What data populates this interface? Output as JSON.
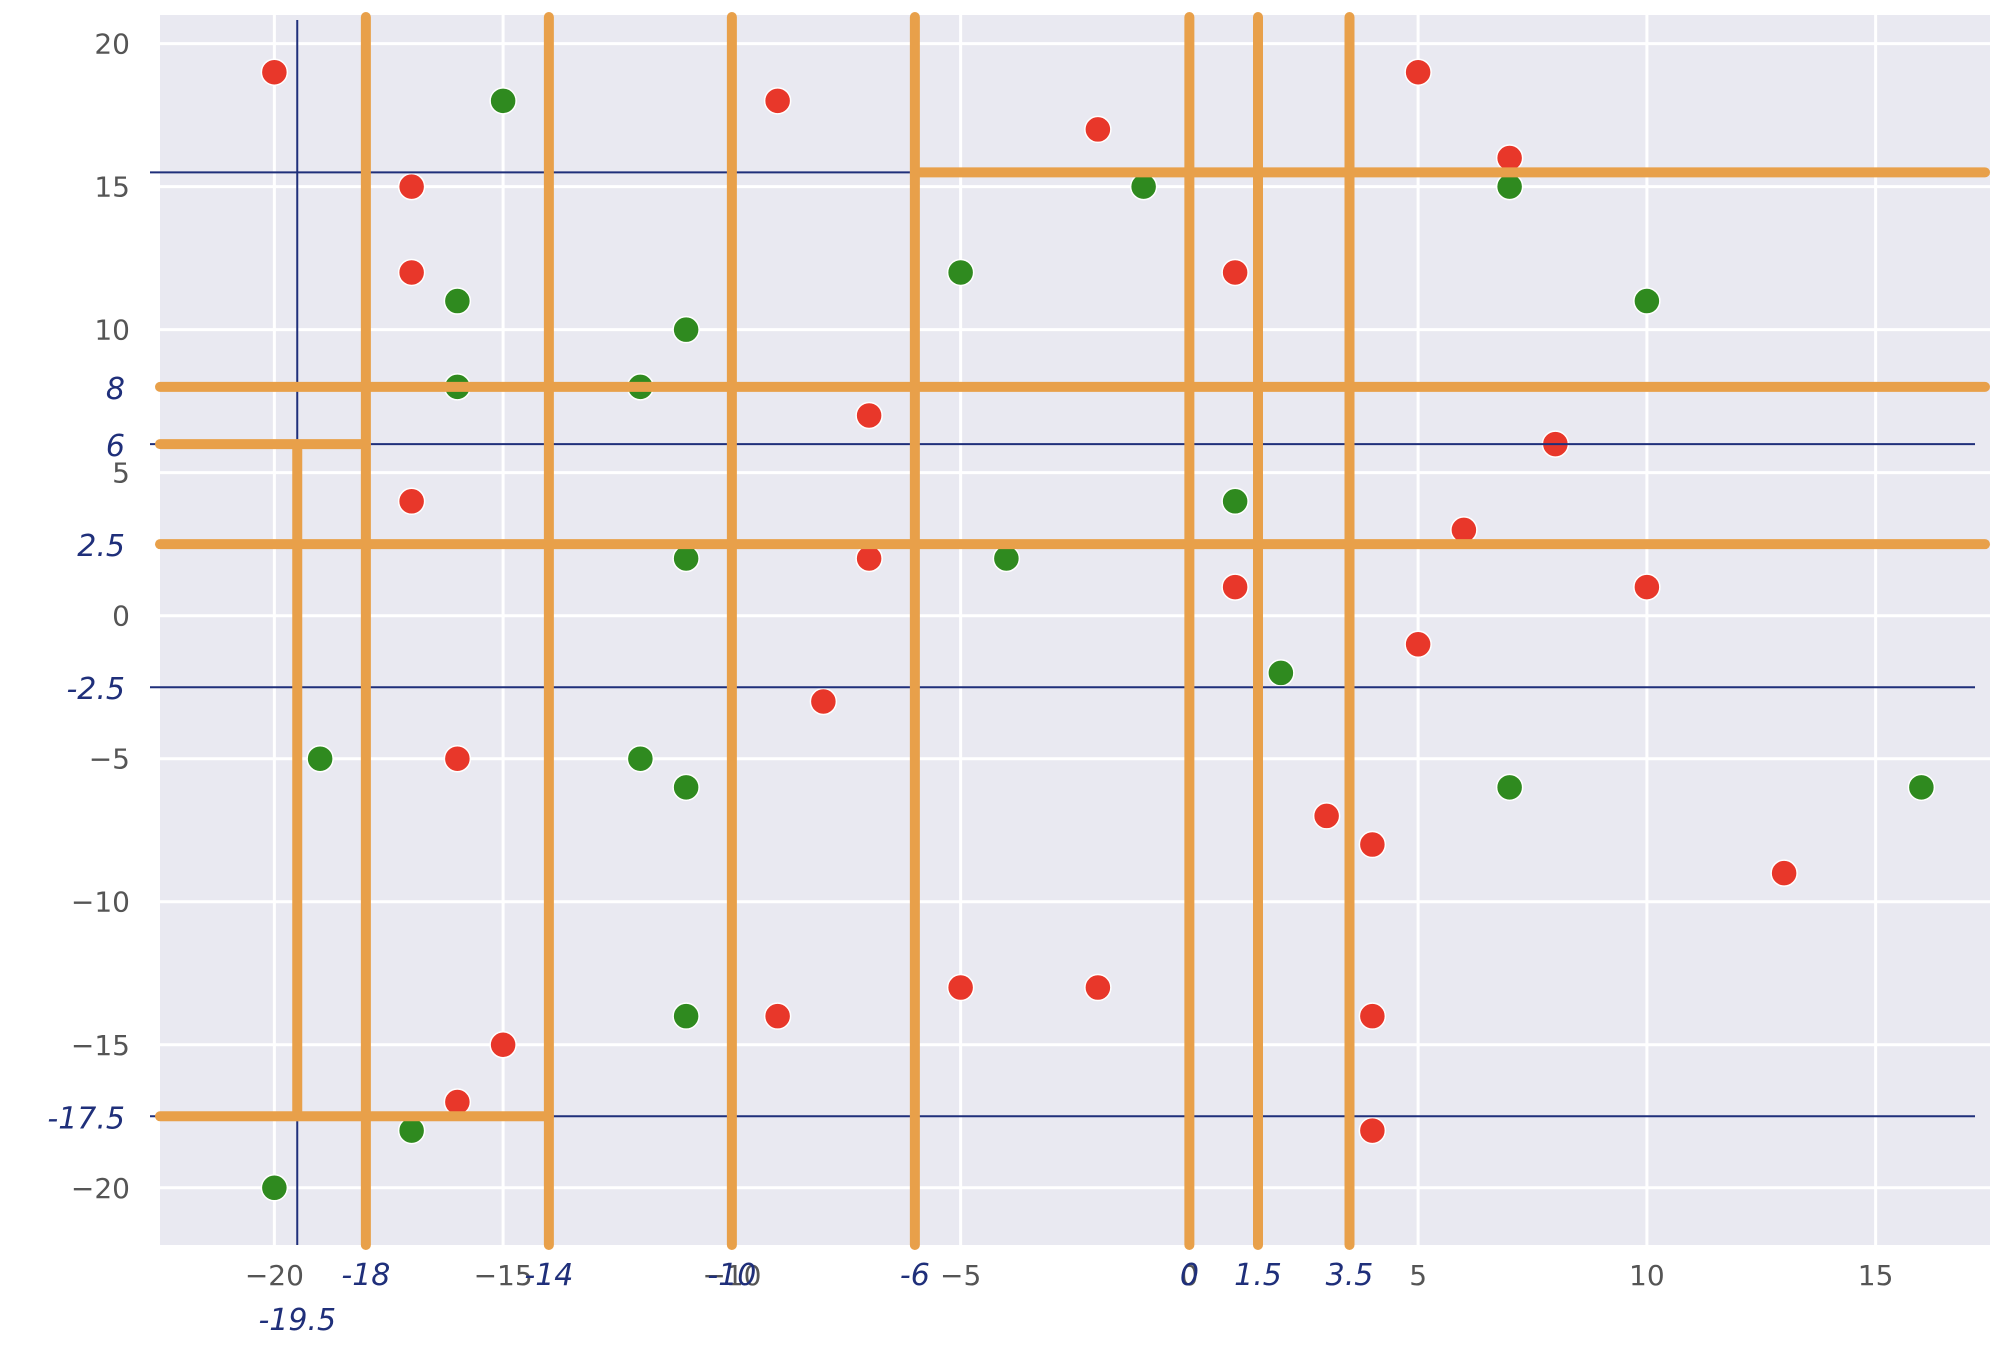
{
  "chart_data": {
    "type": "scatter",
    "title": "",
    "xlabel": "",
    "ylabel": "",
    "xlim": [
      -22.5,
      17.5
    ],
    "ylim": [
      -22,
      21
    ],
    "grid": true,
    "x_ticks": [
      -20,
      -15,
      -10,
      -5,
      0,
      5,
      10,
      15
    ],
    "y_ticks": [
      20,
      15,
      10,
      5,
      0,
      -5,
      -10,
      -15,
      -20
    ],
    "x_tick_labels": [
      "−20",
      "−15",
      "−10",
      "−5",
      "0",
      "5",
      "10",
      "15"
    ],
    "y_tick_labels": [
      "20",
      "15",
      "10",
      "5",
      "0",
      "−5",
      "−10",
      "−15",
      "−20"
    ],
    "colors": {
      "background": "#e9e9f1",
      "grid": "#ffffff",
      "red": "#e8372a",
      "green": "#2f8a1f",
      "orange": "#e8a04a",
      "blue": "#1f2f7a"
    },
    "series": [
      {
        "color": "red",
        "points": [
          [
            -20,
            19
          ],
          [
            -9,
            18
          ],
          [
            -2,
            17
          ],
          [
            5,
            19
          ],
          [
            7,
            16
          ],
          [
            -17,
            15
          ],
          [
            -17,
            12
          ],
          [
            1,
            12
          ],
          [
            -7,
            7
          ],
          [
            8,
            6
          ],
          [
            -17,
            4
          ],
          [
            6,
            3
          ],
          [
            -7,
            2
          ],
          [
            1,
            1
          ],
          [
            10,
            1
          ],
          [
            5,
            -1
          ],
          [
            -8,
            -3
          ],
          [
            -16,
            -5
          ],
          [
            3,
            -7
          ],
          [
            4,
            -8
          ],
          [
            13,
            -9
          ],
          [
            -5,
            -13
          ],
          [
            -2,
            -13
          ],
          [
            -9,
            -14
          ],
          [
            4,
            -14
          ],
          [
            -15,
            -15
          ],
          [
            -16,
            -17
          ],
          [
            4,
            -18
          ]
        ]
      },
      {
        "color": "green",
        "points": [
          [
            -15,
            18
          ],
          [
            -1,
            15
          ],
          [
            7,
            15
          ],
          [
            -5,
            12
          ],
          [
            -16,
            11
          ],
          [
            -11,
            10
          ],
          [
            10,
            11
          ],
          [
            -16,
            8
          ],
          [
            -12,
            8
          ],
          [
            1,
            4
          ],
          [
            -11,
            2
          ],
          [
            -4,
            2
          ],
          [
            2,
            -2
          ],
          [
            -19,
            -5
          ],
          [
            -12,
            -5
          ],
          [
            -11,
            -6
          ],
          [
            7,
            -6
          ],
          [
            16,
            -6
          ],
          [
            -11,
            -14
          ],
          [
            -17,
            -18
          ],
          [
            -20,
            -20
          ]
        ]
      }
    ],
    "annotations": {
      "orange_vertical_x": [
        -18,
        -14,
        -10,
        -6,
        0,
        1.5,
        3.5
      ],
      "orange_horizontal_y": [
        8,
        2.5
      ],
      "blue_vertical_x": [
        -19.5,
        -6,
        0,
        1.5,
        3.5
      ],
      "blue_horizontal_y": [
        15.5,
        6,
        -2.5,
        -17.5
      ],
      "hand_labels_x": [
        "-18",
        "-14",
        "-10",
        "-6",
        "0",
        "1.5",
        "3.5",
        "-19.5"
      ],
      "hand_labels_y": [
        "8",
        "6",
        "2.5",
        "-2.5",
        "-17.5"
      ]
    }
  }
}
